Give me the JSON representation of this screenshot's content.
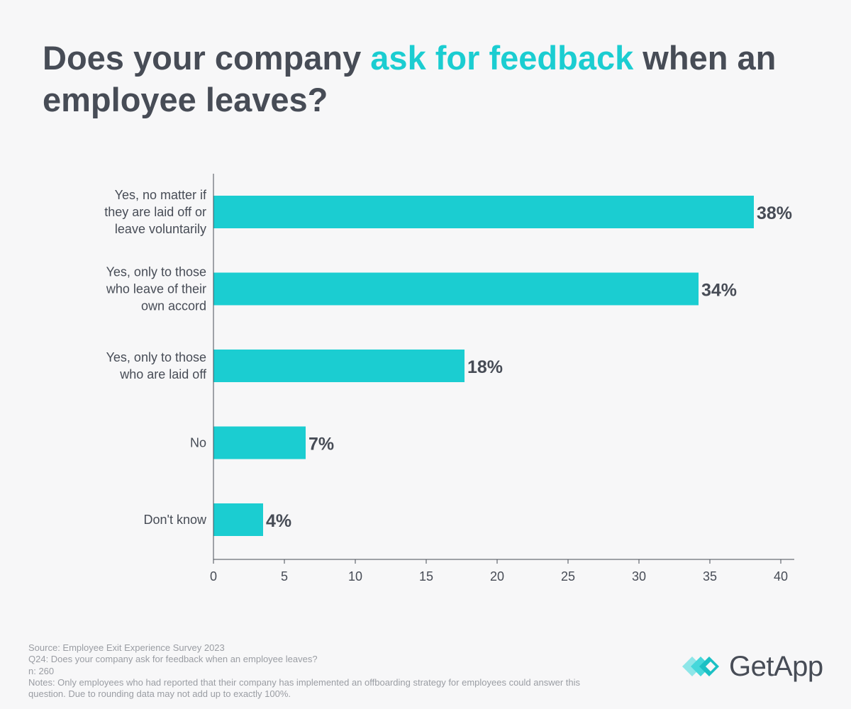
{
  "title": {
    "part1": "Does your company ",
    "highlight": "ask for feedback",
    "part2": " when an employee leaves?"
  },
  "colors": {
    "bar": "#1bcdd1",
    "text": "#474c56",
    "axis": "#474c56",
    "background": "#f7f7f8",
    "footnote": "#9a9da3"
  },
  "chart_data": {
    "type": "bar",
    "orientation": "horizontal",
    "categories": [
      [
        "Yes, no matter if",
        "they are laid off or",
        "leave voluntarily"
      ],
      [
        "Yes, only to those",
        "who leave of their",
        "own accord"
      ],
      [
        "Yes, only to those",
        "who are laid off"
      ],
      [
        "No"
      ],
      [
        "Don't know"
      ]
    ],
    "values": [
      38.1,
      34.2,
      17.7,
      6.5,
      3.5
    ],
    "value_labels": [
      "38%",
      "34%",
      "18%",
      "7%",
      "4%"
    ],
    "xlim": [
      0,
      41
    ],
    "xticks": [
      0,
      5,
      10,
      15,
      20,
      25,
      30,
      35,
      40
    ],
    "xlabel": "",
    "ylabel": "",
    "grid": false,
    "legend": "none"
  },
  "footnotes": {
    "source": "Source: Employee Exit Experience Survey 2023",
    "question": "Q24: Does your company ask for feedback when an employee leaves?",
    "n": "n: 260",
    "notes": "Notes: Only employees who had reported that their company has implemented an offboarding strategy for employees could answer this question. Due to rounding data may not add up to exactly 100%."
  },
  "logo": {
    "text": "GetApp",
    "icon": "getapp-chevrons-icon"
  }
}
